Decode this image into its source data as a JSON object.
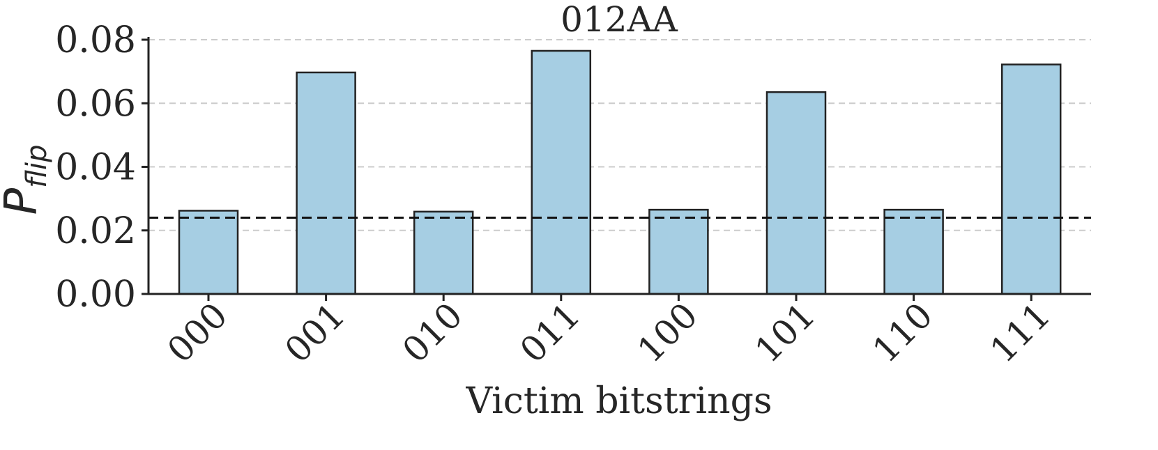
{
  "chart_data": {
    "type": "bar",
    "title": "012AA",
    "xlabel": "Victim bitstrings",
    "ylabel": {
      "main": "P",
      "subscript": "flip"
    },
    "categories": [
      "000",
      "001",
      "010",
      "011",
      "100",
      "101",
      "110",
      "111"
    ],
    "values": [
      0.0262,
      0.0697,
      0.0259,
      0.0765,
      0.0265,
      0.0635,
      0.0265,
      0.0722
    ],
    "ylim": [
      0,
      0.08
    ],
    "yticks": [
      "0.00",
      "0.02",
      "0.04",
      "0.06",
      "0.08"
    ],
    "reference_line": 0.024,
    "grid": "horizontal dashed",
    "colors": {
      "bar_fill": "#a6cee3",
      "bar_edge": "#222222",
      "grid": "#cccccc",
      "reference_line": "#111111",
      "axis": "#222222"
    }
  }
}
